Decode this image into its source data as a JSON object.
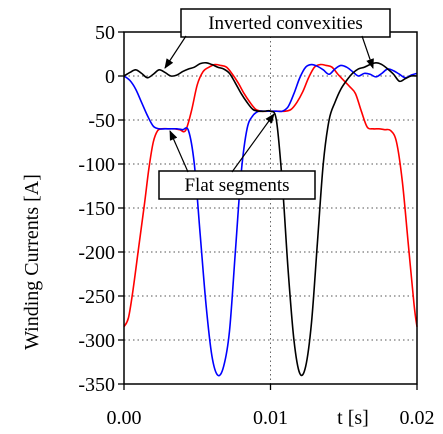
{
  "chart_data": {
    "type": "line",
    "ylabel": "Winding Currents [A]",
    "x_unit_label": "t [s]",
    "xlim": [
      0,
      0.02
    ],
    "ylim": [
      -350,
      50
    ],
    "x_ticks": [
      0.0,
      0.01,
      0.02
    ],
    "x_tick_labels": [
      "0.00",
      "0.01",
      "0.02"
    ],
    "y_ticks": [
      50,
      0,
      -50,
      -100,
      -150,
      -200,
      -250,
      -300,
      -350
    ],
    "y_tick_labels": [
      "50",
      "0",
      "-50",
      "-100",
      "-150",
      "-200",
      "-250",
      "-300",
      "-350"
    ],
    "grid": "dotted",
    "series": [
      {
        "color": "#ff0000",
        "x": [
          0.0,
          0.0003,
          0.0006,
          0.001,
          0.0014,
          0.0017,
          0.002,
          0.0023,
          0.0026,
          0.003,
          0.0034,
          0.0038,
          0.0042,
          0.0046,
          0.005,
          0.0054,
          0.0058,
          0.0062,
          0.0066,
          0.007,
          0.0074,
          0.0078,
          0.0082,
          0.0086,
          0.009,
          0.0094,
          0.0098,
          0.0102,
          0.0106,
          0.011,
          0.0114,
          0.0118,
          0.0122,
          0.0126,
          0.013,
          0.0134,
          0.0138,
          0.0142,
          0.0146,
          0.015,
          0.0154,
          0.0158,
          0.0162,
          0.0166,
          0.017,
          0.0174,
          0.0178,
          0.0182,
          0.0186,
          0.019,
          0.0194,
          0.0198,
          0.02
        ],
        "y": [
          -285,
          -275,
          -245,
          -195,
          -145,
          -105,
          -75,
          -62,
          -60,
          -60,
          -60,
          -61,
          -62,
          -40,
          -10,
          5,
          10,
          13,
          12,
          10,
          2,
          -8,
          -20,
          -30,
          -38,
          -40,
          -40,
          -40,
          -40,
          -40,
          -38,
          -30,
          -18,
          -2,
          10,
          13,
          12,
          10,
          2,
          -5,
          -12,
          -20,
          -40,
          -58,
          -60,
          -60,
          -61,
          -62,
          -75,
          -120,
          -190,
          -260,
          -285
        ]
      },
      {
        "color": "#0000ff",
        "x": [
          0.0,
          0.0004,
          0.0008,
          0.0012,
          0.0016,
          0.002,
          0.0024,
          0.0028,
          0.0032,
          0.0036,
          0.004,
          0.0044,
          0.0048,
          0.0052,
          0.0056,
          0.006,
          0.0064,
          0.0068,
          0.0072,
          0.0076,
          0.008,
          0.0084,
          0.0088,
          0.0092,
          0.0096,
          0.01,
          0.0104,
          0.0108,
          0.0112,
          0.0116,
          0.012,
          0.0124,
          0.0128,
          0.0132,
          0.0136,
          0.014,
          0.0144,
          0.0148,
          0.0152,
          0.0156,
          0.016,
          0.0164,
          0.0168,
          0.0172,
          0.0176,
          0.018,
          0.0184,
          0.0188,
          0.0192,
          0.0196,
          0.02
        ],
        "y": [
          0,
          -5,
          -15,
          -30,
          -45,
          -57,
          -60,
          -60,
          -60,
          -60,
          -61,
          -62,
          -100,
          -180,
          -260,
          -318,
          -340,
          -330,
          -290,
          -200,
          -110,
          -60,
          -45,
          -40,
          -40,
          -40,
          -40,
          -40,
          -35,
          -20,
          -2,
          10,
          13,
          11,
          7,
          2,
          8,
          12,
          10,
          5,
          0,
          3,
          2,
          -1,
          3,
          8,
          6,
          2,
          -2,
          1,
          3
        ]
      },
      {
        "color": "#000000",
        "x": [
          0.0,
          0.0004,
          0.0008,
          0.0012,
          0.0016,
          0.002,
          0.0024,
          0.0028,
          0.0032,
          0.0036,
          0.004,
          0.0044,
          0.0048,
          0.0052,
          0.0056,
          0.006,
          0.0064,
          0.0068,
          0.0072,
          0.0076,
          0.008,
          0.0084,
          0.0088,
          0.0092,
          0.0096,
          0.01,
          0.0104,
          0.0108,
          0.0112,
          0.0116,
          0.012,
          0.0124,
          0.0128,
          0.0132,
          0.0136,
          0.014,
          0.0144,
          0.0148,
          0.0152,
          0.0156,
          0.016,
          0.0164,
          0.0168,
          0.0172,
          0.0176,
          0.018,
          0.0184,
          0.0188,
          0.0192,
          0.0196,
          0.02
        ],
        "y": [
          0,
          4,
          7,
          3,
          -2,
          2,
          7,
          4,
          0,
          1,
          5,
          8,
          10,
          14,
          15,
          13,
          10,
          8,
          3,
          -8,
          -20,
          -30,
          -38,
          -40,
          -40,
          -40,
          -50,
          -120,
          -220,
          -300,
          -338,
          -330,
          -280,
          -190,
          -100,
          -50,
          -30,
          -15,
          -5,
          3,
          8,
          10,
          13,
          15,
          13,
          8,
          2,
          -6,
          -3,
          0,
          0
        ]
      }
    ],
    "annotations": [
      {
        "text": "Inverted convexities"
      },
      {
        "text": "Flat segments"
      }
    ]
  }
}
